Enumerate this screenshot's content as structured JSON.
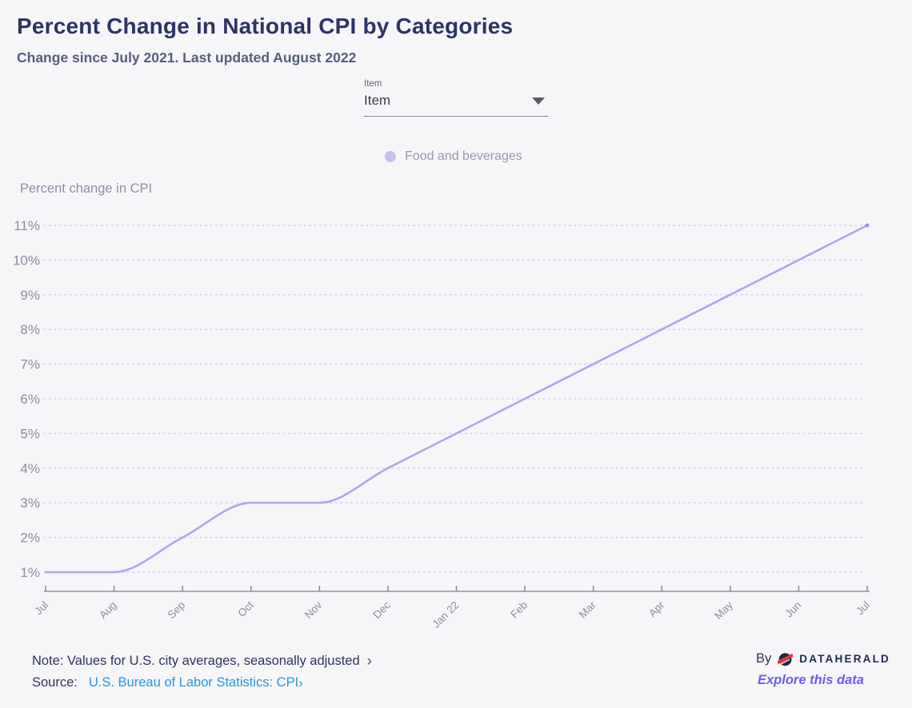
{
  "header": {
    "title": "Percent Change in National CPI by Categories",
    "subtitle": "Change since July 2021. Last updated August 2022"
  },
  "controls": {
    "dropdown": {
      "label": "Item",
      "value": "Item"
    }
  },
  "legend": {
    "items": [
      {
        "label": "Food and beverages",
        "color": "#c5c0ed"
      }
    ]
  },
  "chart_data": {
    "type": "line",
    "title": "Percent Change in National CPI by Categories",
    "xlabel": "",
    "ylabel": "Percent change in CPI",
    "categories": [
      "Jul",
      "Aug",
      "Sep",
      "Oct",
      "Nov",
      "Dec",
      "Jan 22",
      "Feb",
      "Mar",
      "Apr",
      "May",
      "Jun",
      "Jul"
    ],
    "series": [
      {
        "name": "Food and beverages",
        "values": [
          1,
          1,
          2,
          3,
          3,
          4,
          5,
          6,
          7,
          8,
          9,
          10,
          11
        ]
      }
    ],
    "unit": "%",
    "ylim": [
      1,
      11
    ],
    "yticks": [
      1,
      2,
      3,
      4,
      5,
      6,
      7,
      8,
      9,
      10,
      11
    ],
    "ytick_labels": [
      "1%",
      "2%",
      "3%",
      "4%",
      "5%",
      "6%",
      "7%",
      "8%",
      "9%",
      "10%",
      "11%"
    ],
    "grid": "horizontal dotted",
    "legend_position": "top",
    "line_color": "#aea6ea",
    "line_end_color": "#998fe7",
    "gridline_color": "#d8d5f0",
    "axis_color": "#8f92a9",
    "tick_label_color": "#8b8ea6"
  },
  "footer": {
    "note": "Note: Values for U.S. city averages, seasonally adjusted",
    "source_label": "Source:",
    "source_link": "U.S. Bureau of Labor Statistics: CPI",
    "by_label": "By",
    "brand": "DATAHERALD",
    "explore_label": "Explore this data"
  },
  "icons": {
    "chevron_right": "›"
  },
  "colors": {
    "background": "#f6f6f8",
    "title": "#2d3362",
    "subtitle": "#565d7f",
    "link_blue": "#2c95e4",
    "explore_purple": "#6b5ef0",
    "brand_navy": "#202850",
    "logo_red": "#e23540"
  }
}
